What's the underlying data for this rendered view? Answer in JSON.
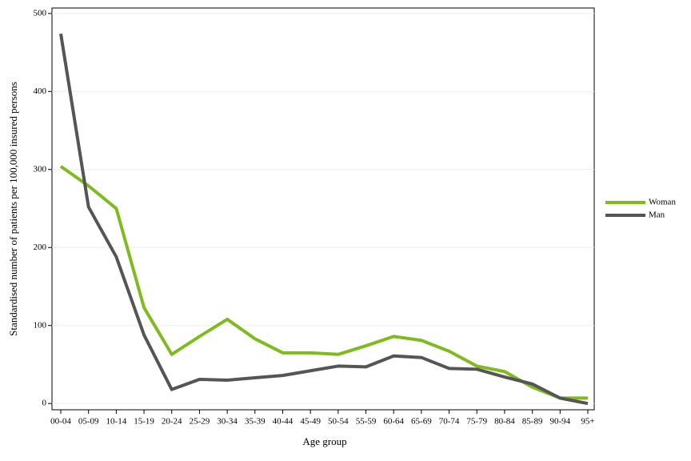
{
  "chart_data": {
    "type": "line",
    "x_label": "Age group",
    "y_label": "Standardised number of patients per 100,000 insured persons",
    "categories": [
      "00-04",
      "05-09",
      "10-14",
      "15-19",
      "20-24",
      "25-29",
      "30-34",
      "35-39",
      "40-44",
      "45-49",
      "50-54",
      "55-59",
      "60-64",
      "65-69",
      "70-74",
      "75-79",
      "80-84",
      "85-89",
      "90-94",
      "95+"
    ],
    "series": [
      {
        "name": "Woman",
        "color": "#7fbb1f",
        "values": [
          304,
          279,
          250,
          123,
          63,
          86,
          108,
          83,
          65,
          65,
          63,
          74,
          86,
          81,
          67,
          48,
          41,
          21,
          7,
          7
        ]
      },
      {
        "name": "Man",
        "color": "#555555",
        "values": [
          474,
          252,
          188,
          88,
          18,
          31,
          30,
          33,
          36,
          42,
          48,
          47,
          61,
          59,
          45,
          44,
          34,
          25,
          7,
          0
        ]
      }
    ],
    "ylim": [
      -8,
      507
    ],
    "yticks": [
      0,
      100,
      200,
      300,
      400,
      500
    ],
    "grid": true,
    "legend": "right"
  }
}
